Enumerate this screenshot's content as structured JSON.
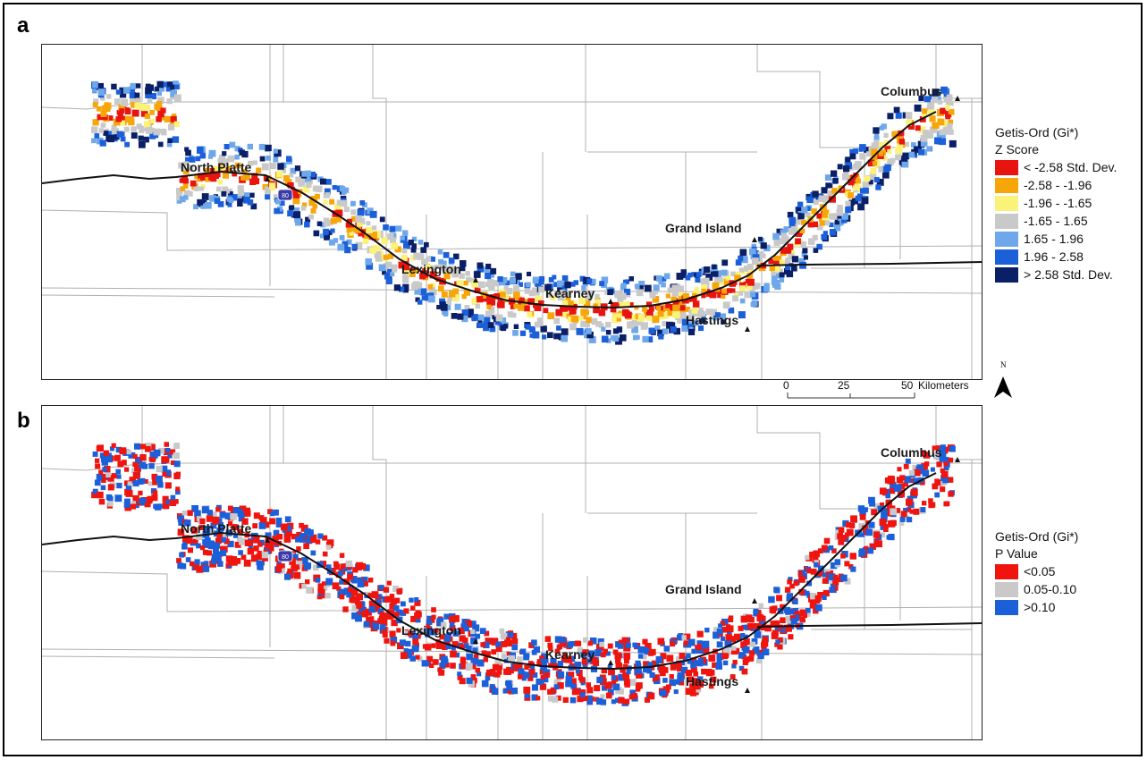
{
  "panels": [
    {
      "letter": "a",
      "legend": {
        "title_line1": "Getis-Ord (Gi*)",
        "title_line2": "Z Score",
        "items": [
          {
            "label": "< -2.58 Std. Dev.",
            "color": "#e8140f"
          },
          {
            "label": "-2.58 - -1.96",
            "color": "#f7a60a"
          },
          {
            "label": "-1.96 - -1.65",
            "color": "#fbf27a"
          },
          {
            "label": "-1.65 - 1.65",
            "color": "#c9c9c9"
          },
          {
            "label": "1.65 - 1.96",
            "color": "#6fa8ea"
          },
          {
            "label": "1.96 - 2.58",
            "color": "#1b5fd9"
          },
          {
            "label": "> 2.58 Std. Dev.",
            "color": "#0a1f66"
          }
        ]
      }
    },
    {
      "letter": "b",
      "legend": {
        "title_line1": "Getis-Ord (Gi*)",
        "title_line2": "P Value",
        "items": [
          {
            "label": "<0.05",
            "color": "#f0140f"
          },
          {
            "label": "0.05-0.10",
            "color": "#c9c9c9"
          },
          {
            "label": ">0.10",
            "color": "#1b5fd9"
          }
        ]
      }
    }
  ],
  "cities": [
    "North Platte",
    "Lexington",
    "Kearney",
    "Grand Island",
    "Hastings",
    "Columbus"
  ],
  "highway_shield": "80",
  "scale_bar": {
    "ticks": [
      "0",
      "25",
      "50"
    ],
    "unit": "Kilometers"
  },
  "north_arrow": {
    "label": "N"
  }
}
